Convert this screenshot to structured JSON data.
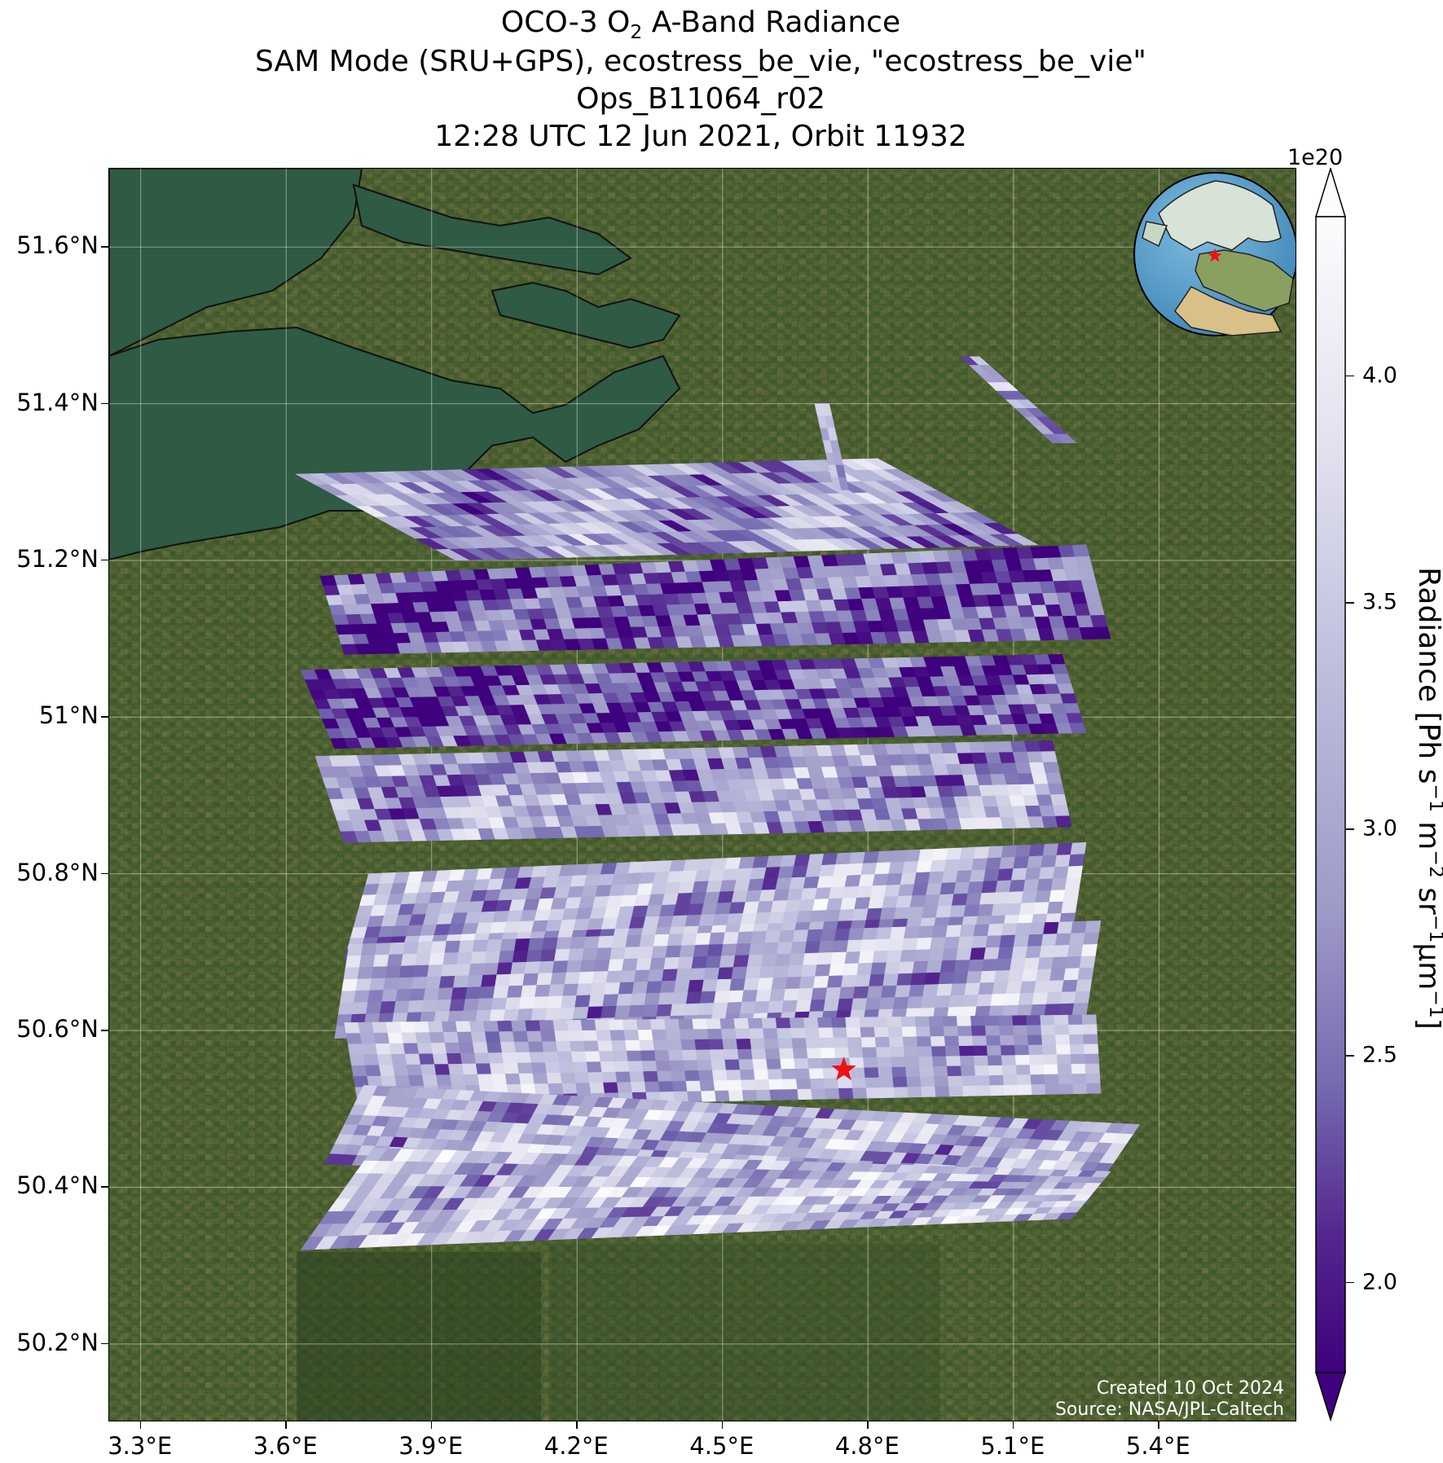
{
  "title": {
    "line1_prefix": "OCO-3 O",
    "line1_sub": "2",
    "line1_suffix": " A-Band Radiance",
    "line2": "SAM Mode (SRU+GPS), ecostress_be_vie, \"ecostress_be_vie\"",
    "line3": "Ops_B11064_r02",
    "line4": "12:28 UTC 12 Jun 2021, Orbit 11932"
  },
  "map": {
    "lon_range": [
      3.235,
      5.685
    ],
    "lat_range": [
      50.1,
      51.7
    ],
    "lat_ticks": [
      "51.6°N",
      "51.4°N",
      "51.2°N",
      "51°N",
      "50.8°N",
      "50.6°N",
      "50.4°N",
      "50.2°N"
    ],
    "lat_values": [
      51.6,
      51.4,
      51.2,
      51.0,
      50.8,
      50.6,
      50.4,
      50.2
    ],
    "lon_ticks": [
      "3.3°E",
      "3.6°E",
      "3.9°E",
      "4.2°E",
      "4.5°E",
      "4.8°E",
      "5.1°E",
      "5.4°E"
    ],
    "lon_values": [
      3.3,
      3.6,
      3.9,
      4.2,
      4.5,
      4.8,
      5.1,
      5.4
    ],
    "grid": true,
    "target_star": {
      "lon": 4.75,
      "lat": 50.55,
      "color": "#ee1111"
    },
    "background": "satellite imagery",
    "colors": {
      "land": "#3f5a2c",
      "sea": "#2f5a44",
      "coast": "#111111"
    }
  },
  "chart_data": {
    "type": "heatmap",
    "variable": "Radiance",
    "colormap": "Purples_r",
    "vmin": 1.8e+20,
    "vmax": 4.35e+20,
    "swaths": [
      {
        "name": "s1",
        "lat_top_left": 51.31,
        "corners": [
          [
            3.62,
            51.31
          ],
          [
            4.82,
            51.33
          ],
          [
            5.15,
            51.22
          ],
          [
            3.95,
            51.2
          ]
        ],
        "mean": 2.9
      },
      {
        "name": "s2",
        "corners": [
          [
            3.67,
            51.18
          ],
          [
            5.25,
            51.22
          ],
          [
            5.3,
            51.1
          ],
          [
            3.72,
            51.08
          ]
        ],
        "mean": 2.4
      },
      {
        "name": "s3",
        "corners": [
          [
            3.63,
            51.06
          ],
          [
            5.2,
            51.08
          ],
          [
            5.25,
            50.98
          ],
          [
            3.7,
            50.96
          ]
        ],
        "mean": 2.3
      },
      {
        "name": "s4",
        "corners": [
          [
            3.66,
            50.95
          ],
          [
            5.18,
            50.97
          ],
          [
            5.22,
            50.86
          ],
          [
            3.72,
            50.84
          ]
        ],
        "mean": 3.0
      },
      {
        "name": "s5",
        "corners": [
          [
            3.77,
            50.8
          ],
          [
            5.25,
            50.84
          ],
          [
            5.22,
            50.72
          ],
          [
            3.72,
            50.69
          ]
        ],
        "mean": 3.2
      },
      {
        "name": "s6",
        "corners": [
          [
            3.73,
            50.71
          ],
          [
            5.28,
            50.74
          ],
          [
            5.25,
            50.62
          ],
          [
            3.7,
            50.59
          ]
        ],
        "mean": 3.1
      },
      {
        "name": "s7",
        "corners": [
          [
            3.72,
            50.61
          ],
          [
            5.27,
            50.62
          ],
          [
            5.28,
            50.52
          ],
          [
            3.75,
            50.5
          ]
        ],
        "mean": 3.2
      },
      {
        "name": "s8",
        "corners": [
          [
            3.76,
            50.53
          ],
          [
            5.36,
            50.48
          ],
          [
            5.25,
            50.38
          ],
          [
            3.68,
            50.43
          ]
        ],
        "mean": 3.2
      },
      {
        "name": "s9",
        "corners": [
          [
            3.78,
            50.45
          ],
          [
            5.3,
            50.42
          ],
          [
            5.22,
            50.36
          ],
          [
            3.63,
            50.32
          ]
        ],
        "mean": 3.3
      },
      {
        "name": "strip1",
        "corners": [
          [
            4.69,
            51.4
          ],
          [
            4.72,
            51.4
          ],
          [
            4.76,
            51.29
          ],
          [
            4.73,
            51.29
          ]
        ],
        "mean": 3.2
      },
      {
        "name": "strip2",
        "corners": [
          [
            4.99,
            51.46
          ],
          [
            5.03,
            51.46
          ],
          [
            5.23,
            51.35
          ],
          [
            5.18,
            51.35
          ]
        ],
        "mean": 3.0
      }
    ]
  },
  "colorbar": {
    "exponent": "1e20",
    "ticks": [
      "4.0",
      "3.5",
      "3.0",
      "2.5",
      "2.0"
    ],
    "tick_values": [
      4.0,
      3.5,
      3.0,
      2.5,
      2.0
    ],
    "range": [
      1.8,
      4.35
    ],
    "label_prefix": "Radiance [Ph s",
    "label_sup1": "−1",
    "label_m": " m",
    "label_sup2": "−2",
    "label_sr": " sr",
    "label_sup3": "−1",
    "label_um": "μm",
    "label_sup4": "−1",
    "label_suffix": "]"
  },
  "credit": {
    "line1": "Created 10 Oct 2024",
    "line2": "Source: NASA/JPL-Caltech"
  }
}
